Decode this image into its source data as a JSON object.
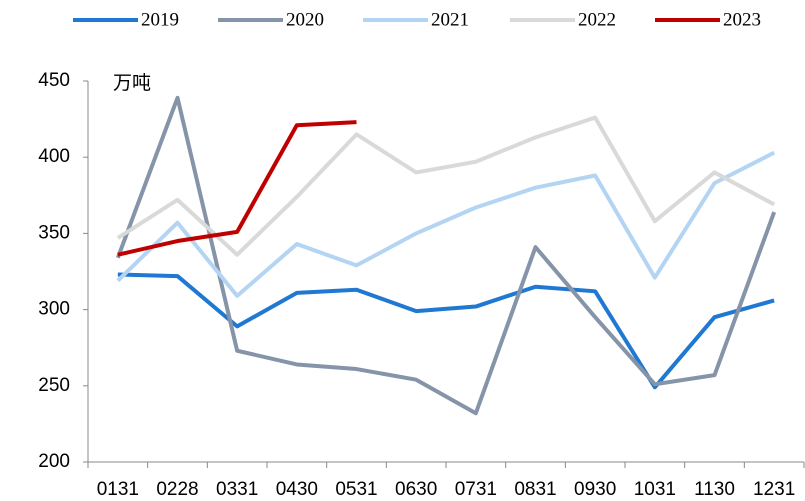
{
  "chart_data": {
    "type": "line",
    "unit_label": "万吨",
    "categories": [
      "0131",
      "0228",
      "0331",
      "0430",
      "0531",
      "0630",
      "0731",
      "0831",
      "0930",
      "1031",
      "1130",
      "1231"
    ],
    "series": [
      {
        "name": "2019",
        "color": "#1f78d1",
        "values": [
          323,
          322,
          289,
          311,
          313,
          299,
          302,
          315,
          312,
          249,
          295,
          306
        ]
      },
      {
        "name": "2020",
        "color": "#8594a8",
        "values": [
          334,
          439,
          273,
          264,
          261,
          254,
          232,
          341,
          295,
          251,
          257,
          364
        ]
      },
      {
        "name": "2021",
        "color": "#b4d4f3",
        "values": [
          319,
          357,
          309,
          343,
          329,
          350,
          367,
          380,
          388,
          321,
          383,
          403
        ]
      },
      {
        "name": "2022",
        "color": "#d9d9d9",
        "values": [
          347,
          372,
          336,
          374,
          415,
          390,
          397,
          413,
          426,
          358,
          390,
          369
        ]
      },
      {
        "name": "2023",
        "color": "#c00000",
        "values": [
          336,
          345,
          351,
          421,
          423,
          null,
          null,
          null,
          null,
          null,
          null,
          null
        ]
      }
    ],
    "ylim": [
      200,
      450
    ],
    "yticks": [
      200,
      250,
      300,
      350,
      400,
      450
    ],
    "grid": false,
    "legend": "top"
  }
}
